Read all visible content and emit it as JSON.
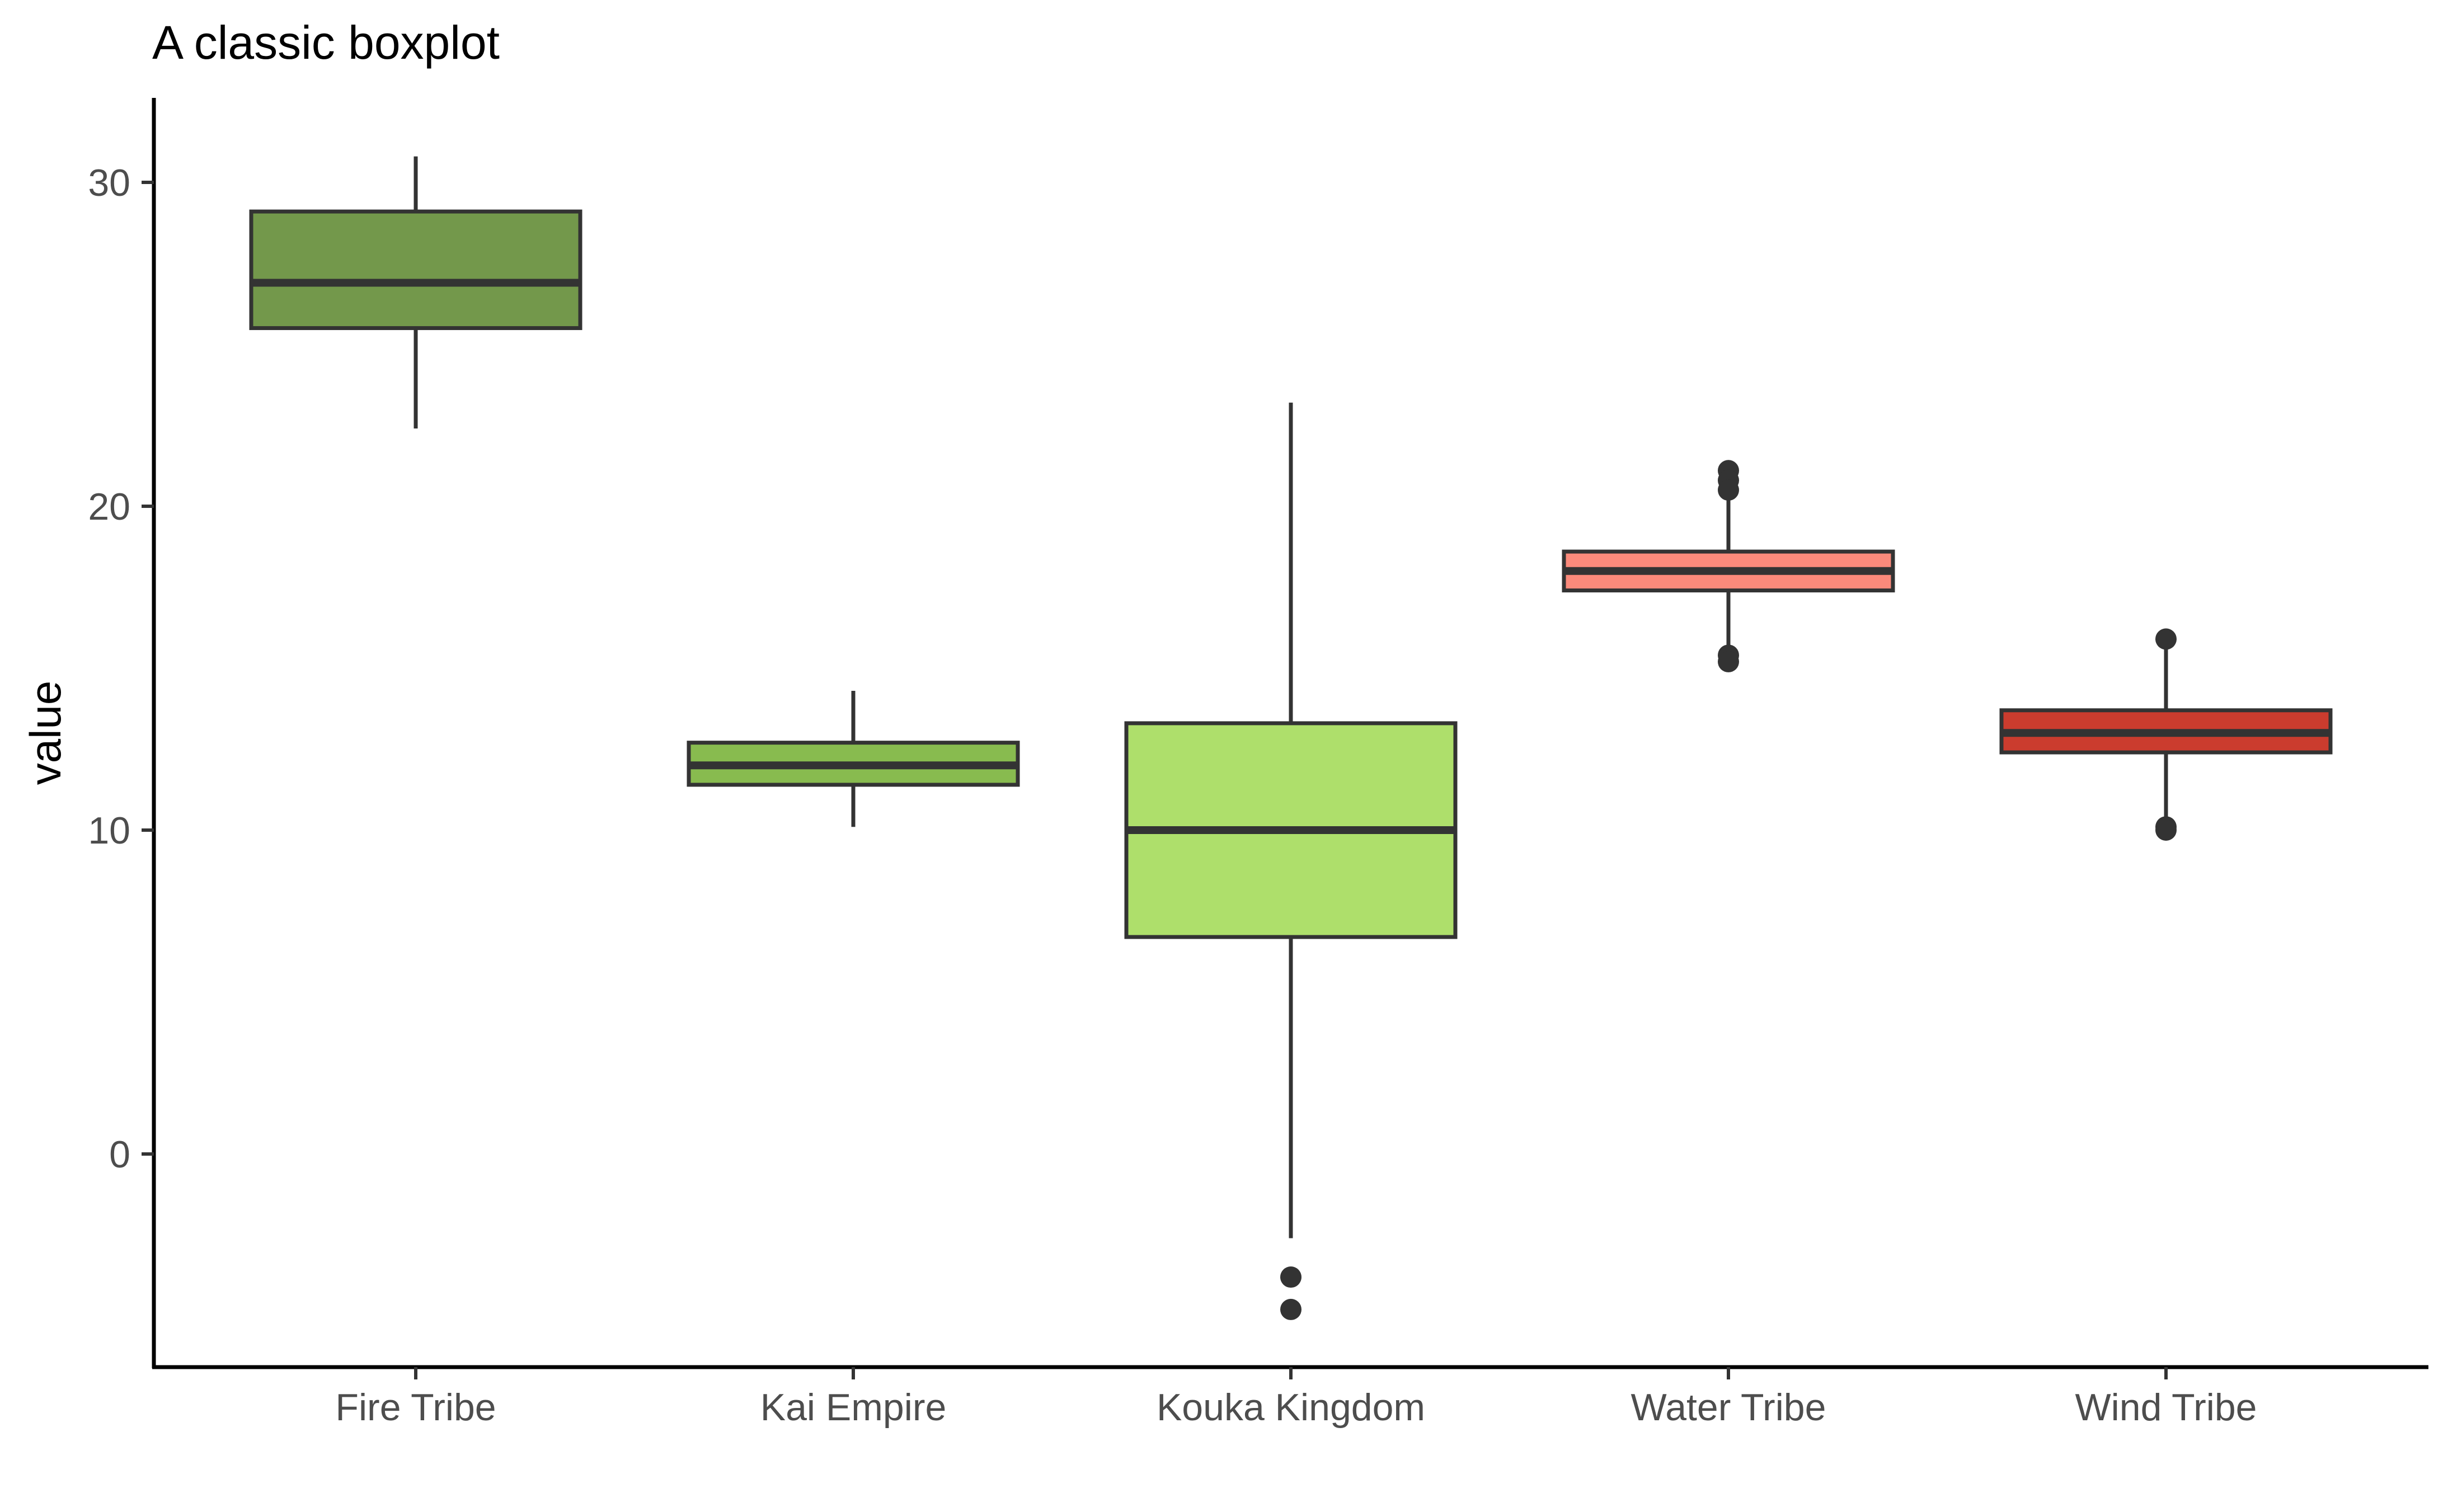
{
  "chart_data": {
    "type": "boxplot",
    "title": "A classic boxplot",
    "xlabel": "",
    "ylabel": "value",
    "ylim": [
      -6.6,
      32.6
    ],
    "y_ticks": [
      0,
      10,
      20,
      30
    ],
    "y_tick_labels": [
      "0",
      "10",
      "20",
      "30"
    ],
    "grid": false,
    "categories": [
      "Fire Tribe",
      "Kai Empire",
      "Kouka Kingdom",
      "Water Tribe",
      "Wind Tribe"
    ],
    "series": [
      {
        "name": "Fire Tribe",
        "color": "#73984b",
        "whisker_low": 22.4,
        "q1": 25.5,
        "median": 26.9,
        "q3": 29.1,
        "whisker_high": 30.8,
        "outliers": []
      },
      {
        "name": "Kai Empire",
        "color": "#88bb4f",
        "whisker_low": 10.1,
        "q1": 11.4,
        "median": 12.0,
        "q3": 12.7,
        "whisker_high": 14.3,
        "outliers": []
      },
      {
        "name": "Kouka Kingdom",
        "color": "#aedf6b",
        "whisker_low": -2.6,
        "q1": 6.7,
        "median": 10.0,
        "q3": 13.3,
        "whisker_high": 23.2,
        "outliers": [
          -3.8,
          -4.8
        ]
      },
      {
        "name": "Water Tribe",
        "color": "#fb8a7b",
        "whisker_low": 15.6,
        "q1": 17.4,
        "median": 18.0,
        "q3": 18.6,
        "whisker_high": 20.4,
        "outliers": [
          21.1,
          20.8,
          20.5,
          15.4,
          15.2
        ]
      },
      {
        "name": "Wind Tribe",
        "color": "#cb3c2e",
        "whisker_low": 10.4,
        "q1": 12.4,
        "median": 13.0,
        "q3": 13.7,
        "whisker_high": 15.6,
        "outliers": [
          15.9,
          10.1,
          10.0
        ]
      }
    ],
    "outline_color": "#333333",
    "axis_color": "#000000"
  }
}
